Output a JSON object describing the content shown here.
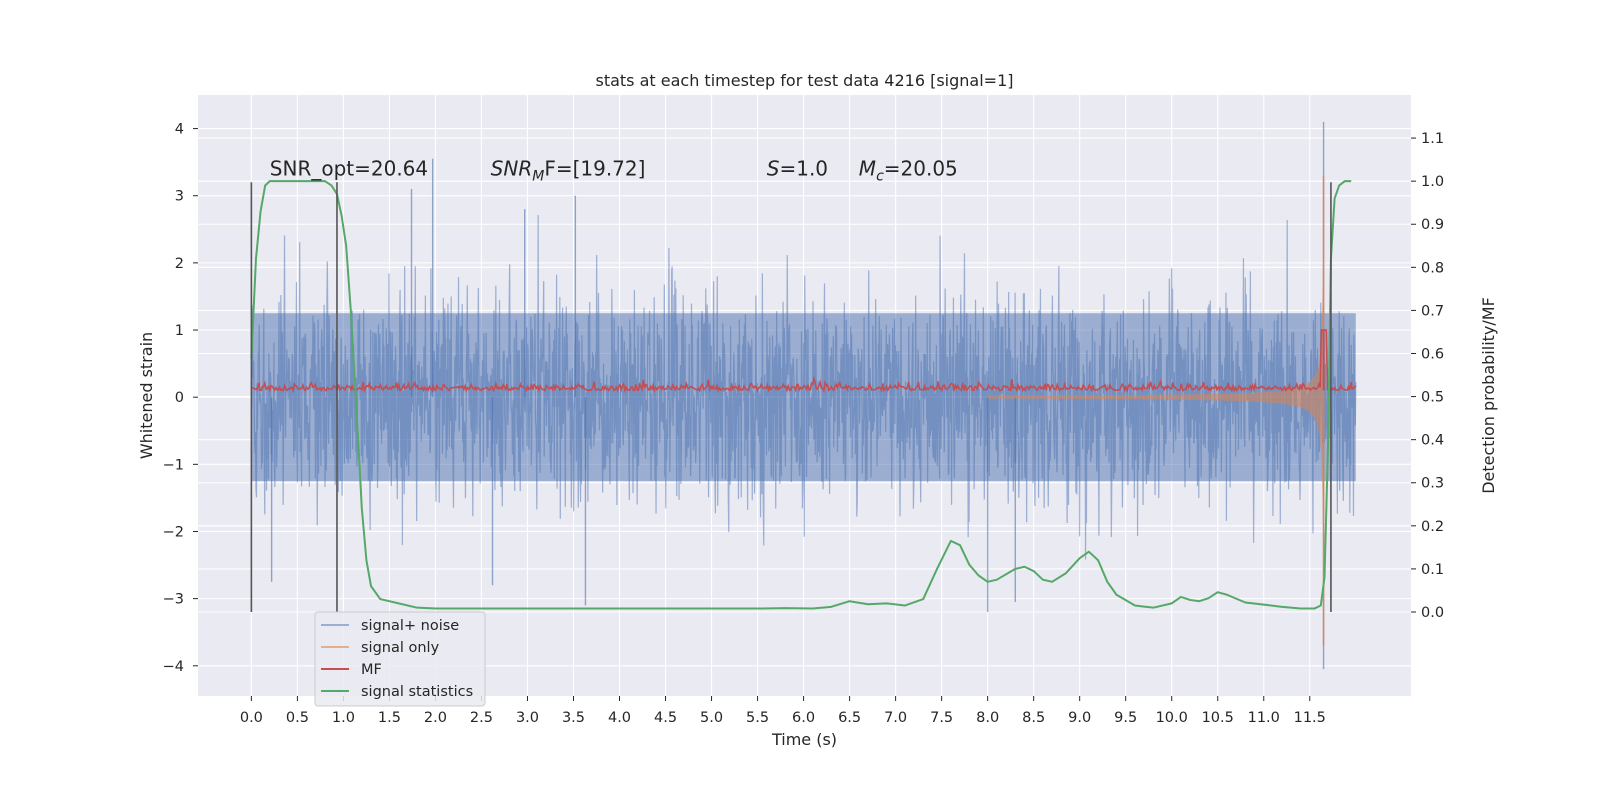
{
  "chart_data": {
    "type": "line",
    "title": "stats at each timestep for test data 4216 [signal=1]",
    "xlabel": "Time (s)",
    "ylabel_left": "Whitened strain",
    "ylabel_right": "Detection probability/MF",
    "xlim": [
      -0.58,
      12.6
    ],
    "ylim_left": [
      -4.45,
      4.5
    ],
    "ylim_right": [
      -0.195,
      1.2
    ],
    "x_ticks": [
      0,
      0.5,
      1,
      1.5,
      2,
      2.5,
      3,
      3.5,
      4,
      4.5,
      5,
      5.5,
      6,
      6.5,
      7,
      7.5,
      8,
      8.5,
      9,
      9.5,
      10,
      10.5,
      11,
      11.5
    ],
    "x_tick_labels": [
      "0.0",
      "0.5",
      "1.0",
      "1.5",
      "2.0",
      "2.5",
      "3.0",
      "3.5",
      "4.0",
      "4.5",
      "5.0",
      "5.5",
      "6.0",
      "6.5",
      "7.0",
      "7.5",
      "8.0",
      "8.5",
      "9.0",
      "9.5",
      "10.0",
      "10.5",
      "11.0",
      "11.5"
    ],
    "y_left_ticks": [
      4,
      3,
      2,
      1,
      0,
      -1,
      -2,
      -3,
      -4
    ],
    "y_left_tick_labels": [
      "4",
      "3",
      "2",
      "1",
      "0",
      "−1",
      "−2",
      "−3",
      "−4"
    ],
    "y_right_ticks": [
      1.1,
      1.0,
      0.9,
      0.8,
      0.7,
      0.6,
      0.5,
      0.4,
      0.3,
      0.2,
      0.1,
      0.0
    ],
    "y_right_tick_labels": [
      "1.1",
      "1.0",
      "0.9",
      "0.8",
      "0.7",
      "0.6",
      "0.5",
      "0.4",
      "0.3",
      "0.2",
      "0.1",
      "0.0"
    ],
    "grid": true,
    "legend_position": "lower-left",
    "annotations": [
      {
        "text": "SNR_opt=20.64",
        "x": 0.2,
        "y": 3.3
      },
      {
        "base": "SNR",
        "sub": "M",
        "rest": "F=[19.72]",
        "x": 2.6,
        "y": 3.3
      },
      {
        "base": "S",
        "rest": "=1.0",
        "x": 5.6,
        "y": 3.3
      },
      {
        "base": "M",
        "sub": "c",
        "rest": "=20.05",
        "x": 6.6,
        "y": 3.3
      }
    ],
    "vertical_markers": [
      {
        "x": 0.0,
        "y_range": [
          -3.2,
          3.2
        ]
      },
      {
        "x": 0.93,
        "y_range": [
          -3.2,
          3.2
        ]
      },
      {
        "x": 11.73,
        "y_range": [
          -3.2,
          3.2
        ]
      }
    ],
    "series": [
      {
        "name": "signal+ noise",
        "axis": "left",
        "color": "#4c72b0",
        "opacity": 0.5,
        "kind": "dense noise, approx ±1.3 body with spikes up to 4.1",
        "x_range": [
          0,
          12
        ],
        "spikes": [
          {
            "x": 1.97,
            "y": 3.55
          },
          {
            "x": 1.74,
            "y": 3.1
          },
          {
            "x": 2.97,
            "y": 2.8
          },
          {
            "x": 3.52,
            "y": 3.0
          },
          {
            "x": 11.65,
            "y": 4.1
          },
          {
            "x": 0.22,
            "y": -2.75
          },
          {
            "x": 2.62,
            "y": -2.8
          },
          {
            "x": 3.63,
            "y": -3.1
          },
          {
            "x": 8.0,
            "y": -3.2
          },
          {
            "x": 8.3,
            "y": -3.05
          },
          {
            "x": 11.65,
            "y": -4.05
          }
        ]
      },
      {
        "name": "signal only",
        "axis": "left",
        "color": "#dd8452",
        "kind": "chirp growing toward merger",
        "merger_x": 11.65,
        "max_amplitude": 3.3
      },
      {
        "name": "MF",
        "axis": "left",
        "color": "#c44e52",
        "kind": "noisy baseline near 0.1 with peak",
        "baseline": 0.1,
        "peak": {
          "x": 11.65,
          "y": 1.0
        }
      },
      {
        "name": "signal statistics",
        "axis": "right",
        "color": "#55a868",
        "x": [
          0.0,
          0.05,
          0.1,
          0.15,
          0.2,
          0.3,
          0.5,
          0.7,
          0.8,
          0.87,
          0.93,
          0.98,
          1.03,
          1.08,
          1.12,
          1.16,
          1.2,
          1.25,
          1.3,
          1.4,
          1.6,
          1.8,
          2.0,
          2.5,
          3.0,
          3.5,
          4.0,
          4.5,
          5.0,
          5.5,
          5.8,
          6.1,
          6.3,
          6.5,
          6.7,
          6.9,
          7.1,
          7.3,
          7.45,
          7.6,
          7.7,
          7.8,
          7.9,
          8.0,
          8.1,
          8.3,
          8.4,
          8.5,
          8.6,
          8.7,
          8.85,
          9.0,
          9.1,
          9.2,
          9.3,
          9.4,
          9.6,
          9.8,
          10.0,
          10.1,
          10.2,
          10.3,
          10.4,
          10.5,
          10.6,
          10.8,
          11.0,
          11.2,
          11.4,
          11.55,
          11.62,
          11.66,
          11.7,
          11.73,
          11.77,
          11.82,
          11.88,
          11.95
        ],
        "y": [
          0.59,
          0.82,
          0.93,
          0.99,
          1.0,
          1.0,
          1.0,
          1.0,
          1.0,
          0.99,
          0.97,
          0.92,
          0.85,
          0.7,
          0.55,
          0.4,
          0.24,
          0.12,
          0.06,
          0.03,
          0.02,
          0.01,
          0.008,
          0.008,
          0.008,
          0.008,
          0.008,
          0.008,
          0.008,
          0.008,
          0.009,
          0.008,
          0.012,
          0.025,
          0.018,
          0.02,
          0.015,
          0.03,
          0.1,
          0.165,
          0.155,
          0.11,
          0.085,
          0.07,
          0.075,
          0.1,
          0.105,
          0.095,
          0.075,
          0.07,
          0.09,
          0.125,
          0.14,
          0.12,
          0.07,
          0.04,
          0.015,
          0.01,
          0.02,
          0.035,
          0.028,
          0.025,
          0.032,
          0.046,
          0.04,
          0.022,
          0.017,
          0.012,
          0.008,
          0.008,
          0.015,
          0.08,
          0.4,
          0.82,
          0.96,
          0.99,
          1.0,
          1.0
        ]
      }
    ]
  }
}
